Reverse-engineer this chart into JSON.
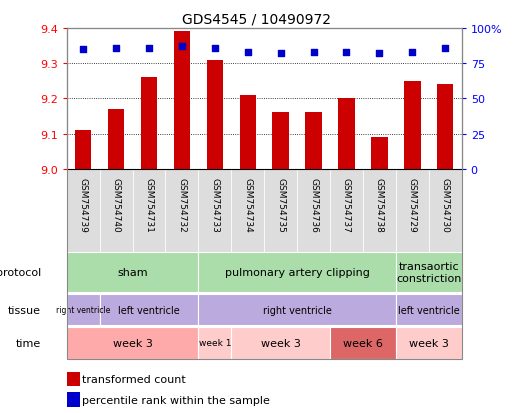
{
  "title": "GDS4545 / 10490972",
  "samples": [
    "GSM754739",
    "GSM754740",
    "GSM754731",
    "GSM754732",
    "GSM754733",
    "GSM754734",
    "GSM754735",
    "GSM754736",
    "GSM754737",
    "GSM754738",
    "GSM754729",
    "GSM754730"
  ],
  "transformed_counts": [
    9.11,
    9.17,
    9.26,
    9.39,
    9.31,
    9.21,
    9.16,
    9.16,
    9.2,
    9.09,
    9.25,
    9.24
  ],
  "percentile_ranks": [
    85,
    86,
    86,
    87,
    86,
    83,
    82,
    83,
    83,
    82,
    83,
    86
  ],
  "ylim": [
    9.0,
    9.4
  ],
  "yticks": [
    9.0,
    9.1,
    9.2,
    9.3,
    9.4
  ],
  "right_yticks": [
    0,
    25,
    50,
    75,
    100
  ],
  "bar_color": "#cc0000",
  "dot_color": "#0000cc",
  "bar_base": 9.0,
  "protocol_groups": [
    {
      "label": "sham",
      "start": 0,
      "end": 4,
      "color": "#aaddaa"
    },
    {
      "label": "pulmonary artery clipping",
      "start": 4,
      "end": 10,
      "color": "#aaddaa"
    },
    {
      "label": "transaortic\nconstriction",
      "start": 10,
      "end": 12,
      "color": "#aaddaa"
    }
  ],
  "tissue_groups": [
    {
      "label": "right ventricle",
      "start": 0,
      "end": 1,
      "color": "#bbaadd"
    },
    {
      "label": "left ventricle",
      "start": 1,
      "end": 4,
      "color": "#bbaadd"
    },
    {
      "label": "right ventricle",
      "start": 4,
      "end": 10,
      "color": "#bbaadd"
    },
    {
      "label": "left ventricle",
      "start": 10,
      "end": 12,
      "color": "#bbaadd"
    }
  ],
  "time_groups": [
    {
      "label": "week 3",
      "start": 0,
      "end": 4,
      "color": "#ffaaaa"
    },
    {
      "label": "week 1",
      "start": 4,
      "end": 5,
      "color": "#ffcccc"
    },
    {
      "label": "week 3",
      "start": 5,
      "end": 8,
      "color": "#ffcccc"
    },
    {
      "label": "week 6",
      "start": 8,
      "end": 10,
      "color": "#dd6666"
    },
    {
      "label": "week 3",
      "start": 10,
      "end": 12,
      "color": "#ffcccc"
    }
  ],
  "bg_color": "#ffffff",
  "label_bg": "#dddddd",
  "border_color": "#888888"
}
